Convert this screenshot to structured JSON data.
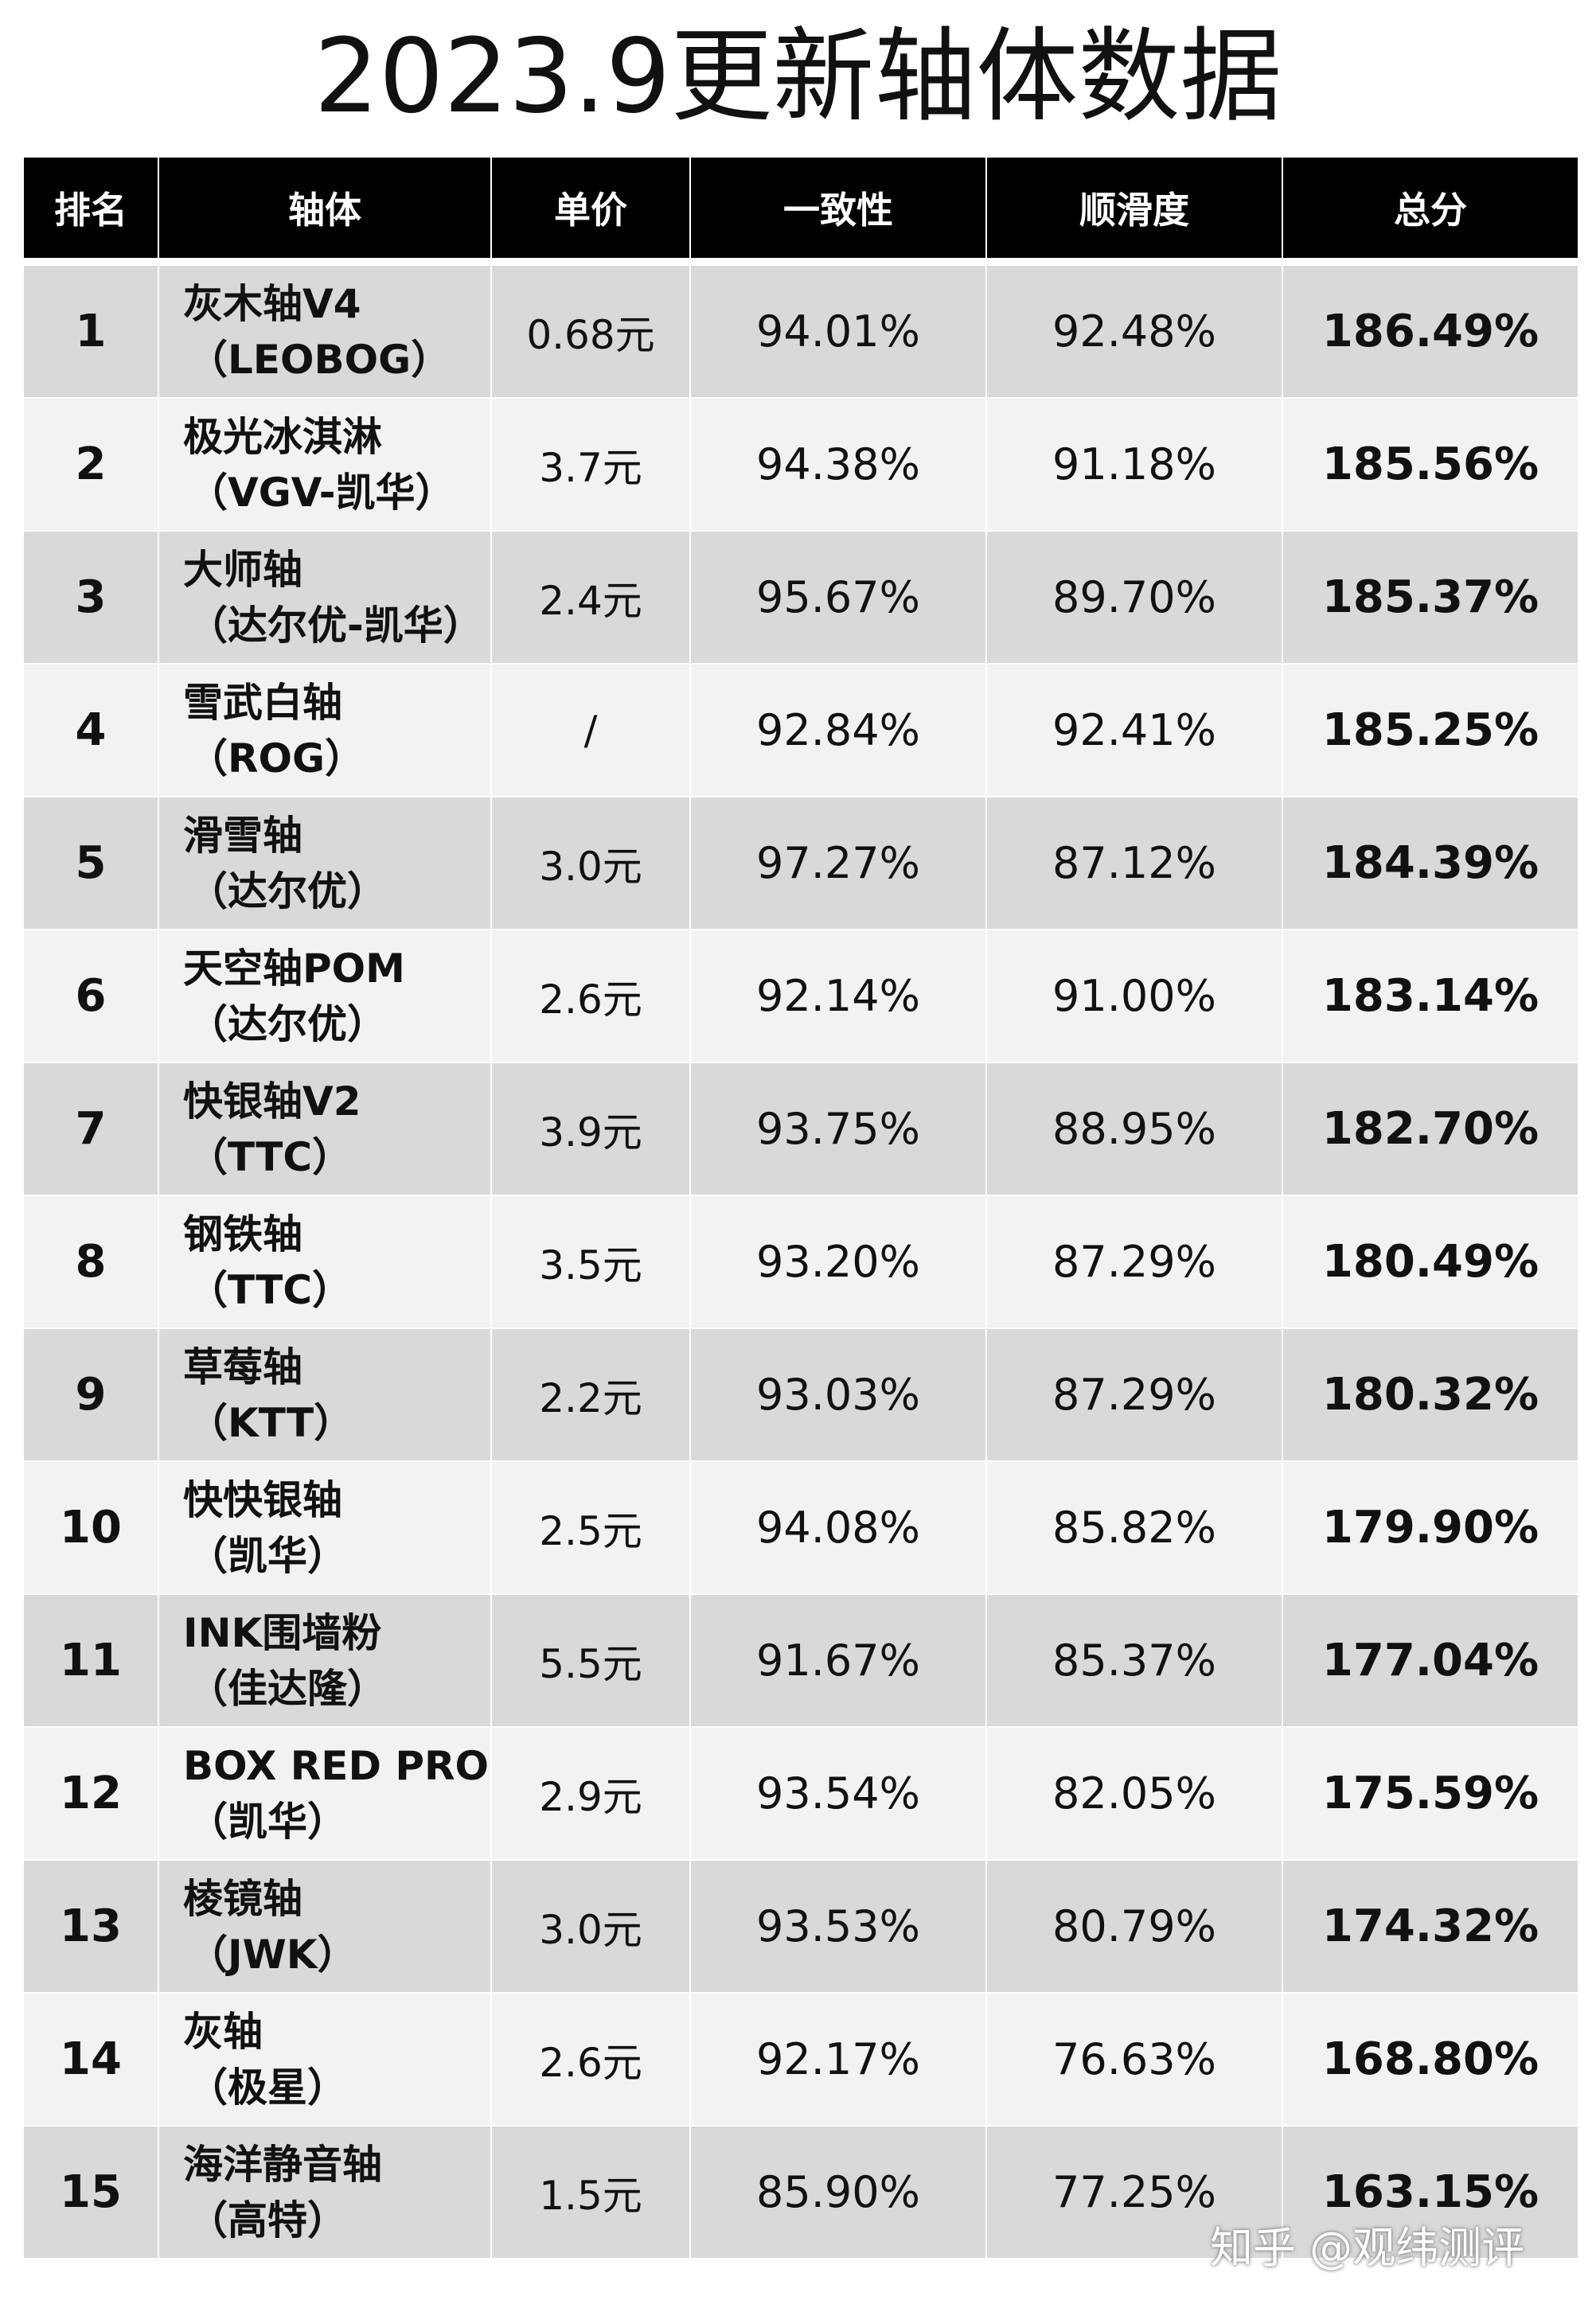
{
  "title": "2023.9更新轴体数据",
  "headers": [
    "排名",
    "轴体",
    "单价",
    "一致性",
    "顺滑度",
    "总分"
  ],
  "rows": [
    {
      "rank": "1",
      "name": "灰木轴V4",
      "brand": "（LEOBOG）",
      "price": "0.68元",
      "consistency": "94.01%",
      "smoothness": "92.48%",
      "total": "186.49%"
    },
    {
      "rank": "2",
      "name": "极光冰淇淋",
      "brand": "（VGV-凯华）",
      "price": "3.7元",
      "consistency": "94.38%",
      "smoothness": "91.18%",
      "total": "185.56%"
    },
    {
      "rank": "3",
      "name": "大师轴",
      "brand": "（达尔优-凯华）",
      "price": "2.4元",
      "consistency": "95.67%",
      "smoothness": "89.70%",
      "total": "185.37%"
    },
    {
      "rank": "4",
      "name": "雪武白轴",
      "brand": "（ROG）",
      "price": "/",
      "consistency": "92.84%",
      "smoothness": "92.41%",
      "total": "185.25%"
    },
    {
      "rank": "5",
      "name": "滑雪轴",
      "brand": "（达尔优）",
      "price": "3.0元",
      "consistency": "97.27%",
      "smoothness": "87.12%",
      "total": "184.39%"
    },
    {
      "rank": "6",
      "name": "天空轴POM",
      "brand": "（达尔优）",
      "price": "2.6元",
      "consistency": "92.14%",
      "smoothness": "91.00%",
      "total": "183.14%"
    },
    {
      "rank": "7",
      "name": "快银轴V2",
      "brand": "（TTC）",
      "price": "3.9元",
      "consistency": "93.75%",
      "smoothness": "88.95%",
      "total": "182.70%"
    },
    {
      "rank": "8",
      "name": "钢铁轴",
      "brand": "（TTC）",
      "price": "3.5元",
      "consistency": "93.20%",
      "smoothness": "87.29%",
      "total": "180.49%"
    },
    {
      "rank": "9",
      "name": "草莓轴",
      "brand": "（KTT）",
      "price": "2.2元",
      "consistency": "93.03%",
      "smoothness": "87.29%",
      "total": "180.32%"
    },
    {
      "rank": "10",
      "name": "快快银轴",
      "brand": "（凯华）",
      "price": "2.5元",
      "consistency": "94.08%",
      "smoothness": "85.82%",
      "total": "179.90%"
    },
    {
      "rank": "11",
      "name": "INK围墙粉",
      "brand": "（佳达隆）",
      "price": "5.5元",
      "consistency": "91.67%",
      "smoothness": "85.37%",
      "total": "177.04%"
    },
    {
      "rank": "12",
      "name": "BOX RED PRO",
      "brand": "（凯华）",
      "price": "2.9元",
      "consistency": "93.54%",
      "smoothness": "82.05%",
      "total": "175.59%"
    },
    {
      "rank": "13",
      "name": "棱镜轴",
      "brand": "（JWK）",
      "price": "3.0元",
      "consistency": "93.53%",
      "smoothness": "80.79%",
      "total": "174.32%"
    },
    {
      "rank": "14",
      "name": "灰轴",
      "brand": "（极星）",
      "price": "2.6元",
      "consistency": "92.17%",
      "smoothness": "76.63%",
      "total": "168.80%"
    },
    {
      "rank": "15",
      "name": "海洋静音轴",
      "brand": "（高特）",
      "price": "1.5元",
      "consistency": "85.90%",
      "smoothness": "77.25%",
      "total": "163.15%"
    }
  ],
  "watermark": "知乎 @观纬测评",
  "colors": {
    "header_bg": "#000000",
    "row_odd": "#d9d9d9",
    "row_even": "#f2f2f2"
  }
}
